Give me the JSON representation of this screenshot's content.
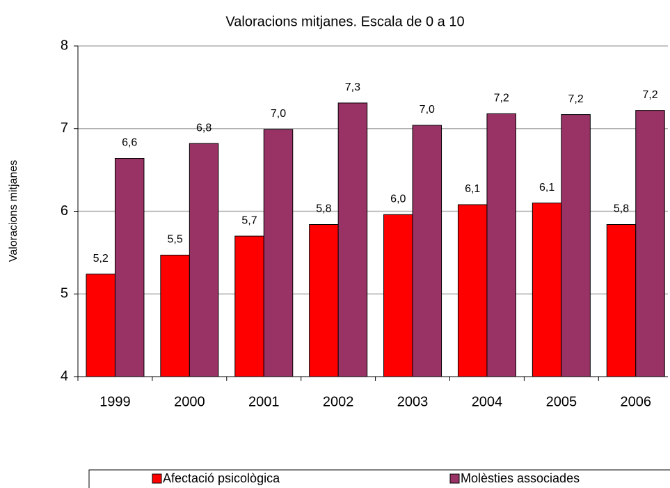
{
  "chart_data": {
    "type": "bar",
    "title": "Valoracions mitjanes. Escala de 0 a 10",
    "y_label": "Valoracions mitjanes",
    "categories": [
      "1999",
      "2000",
      "2001",
      "2002",
      "2003",
      "2004",
      "2005",
      "2006"
    ],
    "series": [
      {
        "name": "Afectació psicològica",
        "color": "#ff0000",
        "values": [
          5.24,
          5.47,
          5.7,
          5.84,
          5.96,
          6.08,
          6.1,
          5.84
        ],
        "value_labels": [
          "5,2",
          "5,5",
          "5,7",
          "5,8",
          "6,0",
          "6,1",
          "6,1",
          "5,8"
        ]
      },
      {
        "name": "Molèsties associades",
        "color": "#993366",
        "values": [
          6.64,
          6.82,
          6.99,
          7.31,
          7.04,
          7.18,
          7.17,
          7.22
        ],
        "value_labels": [
          "6,6",
          "6,8",
          "7,0",
          "7,3",
          "7,0",
          "7,2",
          "7,2",
          "7,2"
        ]
      }
    ],
    "ylim": [
      4,
      8
    ],
    "yticks": [
      4,
      5,
      6,
      7,
      8
    ],
    "grid": true,
    "legend": "bottom"
  }
}
